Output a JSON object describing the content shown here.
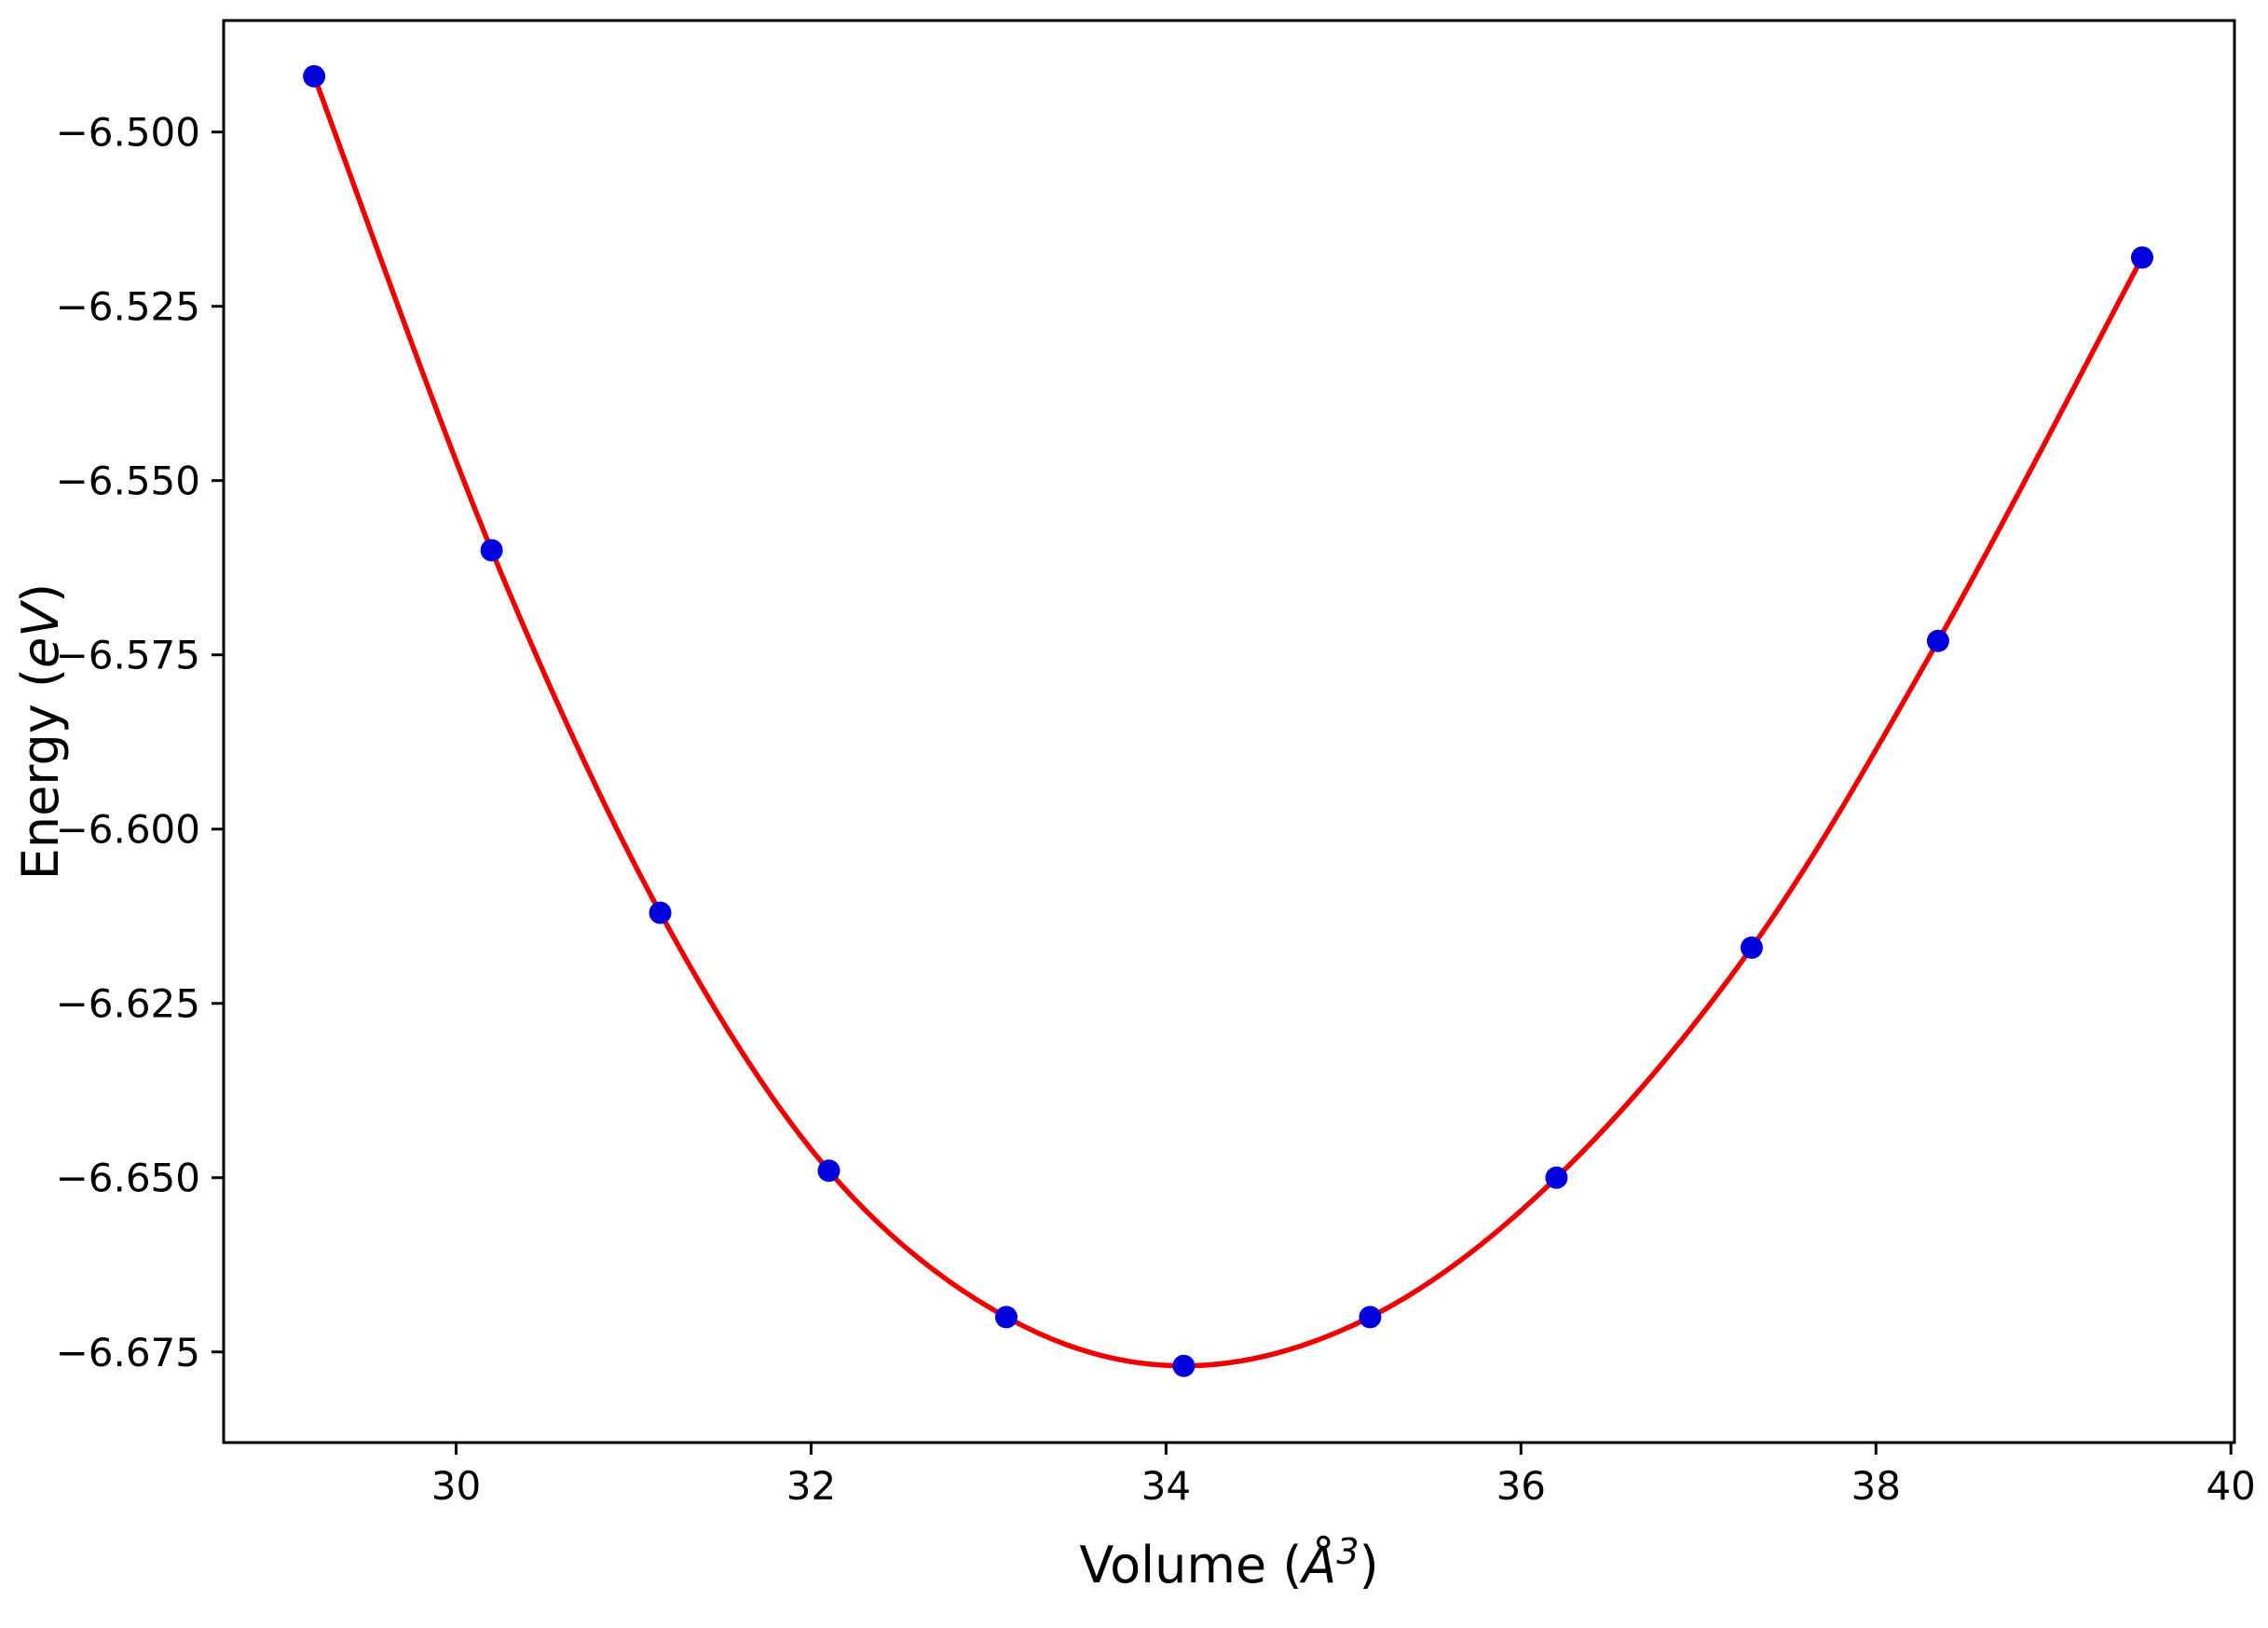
{
  "chart_data": {
    "type": "scatter",
    "title": "",
    "xlabel": "Volume (Å³)",
    "ylabel": "Energy (eV)",
    "xlabel_rich": [
      {
        "t": "Volume ("
      },
      {
        "t": "Å",
        "style": "italic"
      },
      {
        "t": "3",
        "style": "italic",
        "sup": true
      },
      {
        "t": ")"
      }
    ],
    "ylabel_rich": [
      {
        "t": "Energy ("
      },
      {
        "t": "eV",
        "style": "italic"
      },
      {
        "t": ")"
      }
    ],
    "xlim": [
      28.69,
      40.02
    ],
    "ylim": [
      -6.688,
      -6.484
    ],
    "grid": false,
    "legend": "none",
    "xticks": {
      "values": [
        30,
        32,
        34,
        36,
        38,
        40
      ],
      "labels": [
        "30",
        "32",
        "34",
        "36",
        "38",
        "40"
      ]
    },
    "yticks": {
      "values": [
        -6.5,
        -6.525,
        -6.55,
        -6.575,
        -6.6,
        -6.625,
        -6.65,
        -6.675
      ],
      "labels": [
        "−6.500",
        "−6.525",
        "−6.550",
        "−6.575",
        "−6.600",
        "−6.625",
        "−6.650",
        "−6.675"
      ]
    },
    "series": [
      {
        "name": "fitted-eos-curve",
        "type": "line",
        "color": "#ee0000",
        "x": [
          29.2,
          30.2,
          31.15,
          32.1,
          33.1,
          34.1,
          35.15,
          36.2,
          37.3,
          38.35,
          39.5
        ],
        "y": [
          -6.492,
          -6.56,
          -6.612,
          -6.649,
          -6.67,
          -6.677,
          -6.67,
          -6.65,
          -6.617,
          -6.573,
          -6.518
        ]
      },
      {
        "name": "calculated-points",
        "type": "scatter",
        "color": "#0000dd",
        "x": [
          29.2,
          30.2,
          31.15,
          32.1,
          33.1,
          34.1,
          35.15,
          36.2,
          37.3,
          38.35,
          39.5
        ],
        "y": [
          -6.492,
          -6.56,
          -6.612,
          -6.649,
          -6.67,
          -6.677,
          -6.67,
          -6.65,
          -6.617,
          -6.573,
          -6.518
        ]
      }
    ]
  }
}
